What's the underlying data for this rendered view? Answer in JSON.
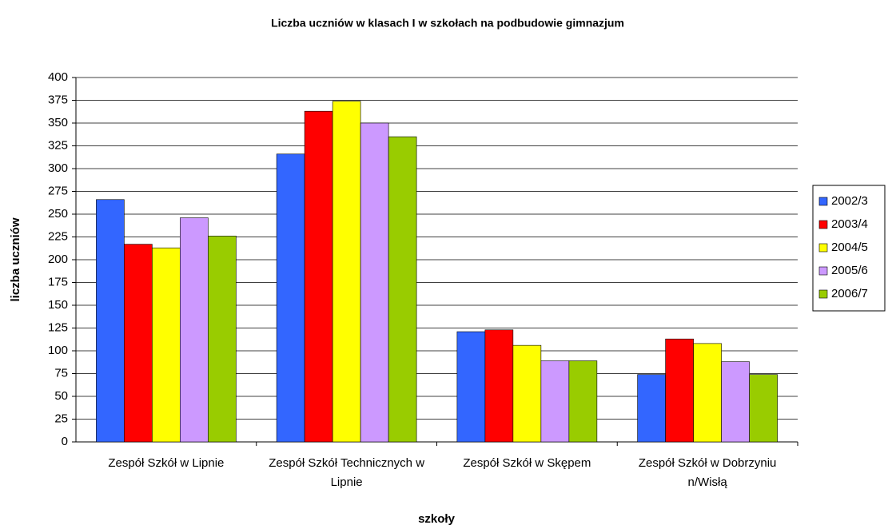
{
  "chart_data": {
    "type": "bar",
    "title": "Liczba uczniów w klasach I w szkołach na podbudowie gimnazjum",
    "x_label": "szkoły",
    "y_label": "liczba uczniów",
    "categories": [
      "Zespół Szkół w Lipnie",
      "Zespół Szkół Technicznych w Lipnie",
      "Zespół Szkół w Skępem",
      "Zespół Szkół w Dobrzyniu n/Wisłą"
    ],
    "series": [
      {
        "name": "2002/3",
        "color": "#3366ff",
        "values": [
          266,
          316,
          121,
          74
        ]
      },
      {
        "name": "2003/4",
        "color": "#ff0000",
        "values": [
          217,
          363,
          123,
          113
        ]
      },
      {
        "name": "2004/5",
        "color": "#ffff00",
        "values": [
          213,
          374,
          106,
          108
        ]
      },
      {
        "name": "2005/6",
        "color": "#cc99ff",
        "values": [
          246,
          350,
          89,
          88
        ]
      },
      {
        "name": "2006/7",
        "color": "#99cc00",
        "values": [
          226,
          335,
          89,
          74
        ]
      }
    ],
    "ylim": [
      0,
      400
    ],
    "yticks": [
      0,
      25,
      50,
      75,
      100,
      125,
      150,
      175,
      200,
      225,
      250,
      275,
      300,
      325,
      350,
      375,
      400
    ],
    "grid": true,
    "legend": "right"
  }
}
